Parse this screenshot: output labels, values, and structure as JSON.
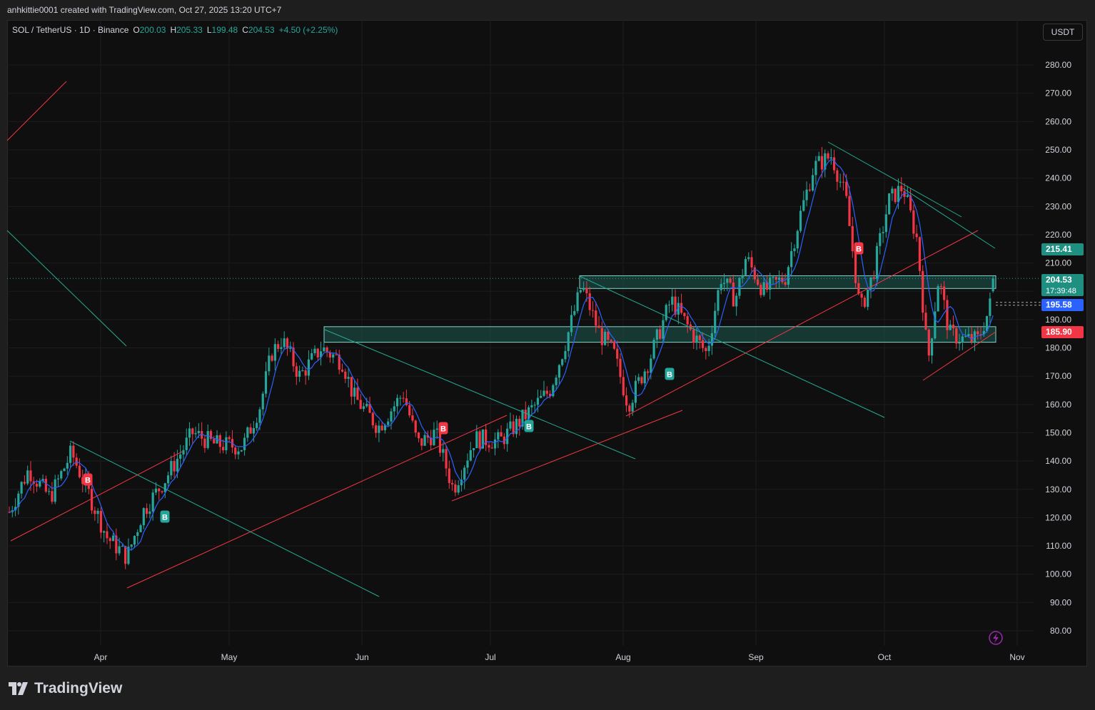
{
  "caption": "anhkittie0001 created with TradingView.com, Oct 27, 2025 13:20 UTC+7",
  "legend": {
    "symbol": "SOL / TetherUS · 1D · Binance",
    "o_label": "O",
    "o_value": "200.03",
    "h_label": "H",
    "h_value": "205.33",
    "l_label": "L",
    "l_value": "199.48",
    "c_label": "C",
    "c_value": "204.53",
    "change": "+4.50 (+2.25%)"
  },
  "currency": "USDT",
  "brand": "TradingView",
  "colors": {
    "up": "#26a69a",
    "down": "#f23645",
    "ma": "#2962ff",
    "trend_red": "#f23645",
    "trend_teal": "#22ab94"
  },
  "price_tags": {
    "last": "204.53",
    "countdown": "17:39:48",
    "ma": "195.58",
    "level_hi": "215.41",
    "level_lo": "185.90"
  },
  "chart_data": {
    "type": "candlestick",
    "ylim": [
      75,
      290
    ],
    "y_ticks": [
      80,
      90,
      100,
      110,
      120,
      130,
      140,
      150,
      160,
      170,
      180,
      190,
      200,
      210,
      220,
      230,
      240,
      250,
      260,
      270,
      280
    ],
    "x_labels": [
      "Apr",
      "May",
      "Jun",
      "Jul",
      "Aug",
      "Sep",
      "Oct",
      "Nov"
    ],
    "signals": [
      {
        "type": "sell",
        "label": "B",
        "date": "Mar 26"
      },
      {
        "type": "buy",
        "label": "B",
        "date": "Apr 16"
      },
      {
        "type": "sell",
        "label": "B",
        "date": "Jun 22"
      },
      {
        "type": "buy",
        "label": "B",
        "date": "Jul 3"
      },
      {
        "type": "buy",
        "label": "B",
        "date": "Aug 11"
      },
      {
        "type": "sell",
        "label": "B",
        "date": "Sep 24"
      }
    ]
  }
}
